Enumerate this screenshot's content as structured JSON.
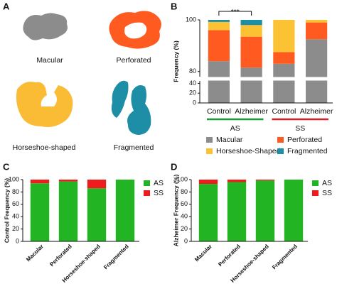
{
  "shapes_panel": {
    "label": "A",
    "shapes": [
      {
        "name": "Macular",
        "color": "#8c8c8c"
      },
      {
        "name": "Perforated",
        "color": "#ff5a1f"
      },
      {
        "name": "Horseshoe-shaped",
        "color": "#fbbc35"
      },
      {
        "name": "Fragmented",
        "color": "#1d8ea6"
      }
    ]
  },
  "chart_data": [
    {
      "type": "bar",
      "stacked": true,
      "label": "B",
      "ylabel": "Frequency (%)",
      "groups": [
        {
          "name": "AS",
          "color": "#1a9a3c",
          "categories": [
            "Control",
            "Alzheimer"
          ]
        },
        {
          "name": "SS",
          "color": "#d9202a",
          "categories": [
            "Control",
            "Alzheimer"
          ]
        }
      ],
      "series": [
        {
          "name": "Macular",
          "color": "#8c8c8c",
          "values": [
            84,
            81.5,
            83,
            92.5
          ]
        },
        {
          "name": "Perforated",
          "color": "#ff5a1f",
          "values": [
            12,
            12,
            4.5,
            6.5
          ]
        },
        {
          "name": "Horseshoe-Shaped",
          "color": "#fbc233",
          "values": [
            3.2,
            4.5,
            12.5,
            1
          ]
        },
        {
          "name": "Fragmented",
          "color": "#1d8ea6",
          "values": [
            0.8,
            2,
            0,
            0
          ]
        }
      ],
      "ylim": [
        0,
        100
      ],
      "y_break": [
        45,
        78
      ],
      "yticks": [
        0,
        20,
        40,
        80,
        100
      ],
      "annotation": "***",
      "legend": "bottom"
    },
    {
      "type": "bar",
      "stacked": true,
      "label": "C",
      "ylabel": "Control Frequency (%)",
      "categories": [
        "Macular",
        "Perforated",
        "Horseshoe-shaped",
        "Fragmented"
      ],
      "series": [
        {
          "name": "AS",
          "color": "#22b422",
          "values": [
            94,
            97,
            86,
            100
          ]
        },
        {
          "name": "SS",
          "color": "#ee1c1c",
          "values": [
            6,
            3,
            14,
            0
          ]
        }
      ],
      "ylim": [
        0,
        100
      ],
      "yticks": [
        0,
        20,
        40,
        60,
        80,
        100
      ],
      "legend": "right"
    },
    {
      "type": "bar",
      "stacked": true,
      "label": "D",
      "ylabel": "Alzheimer Frequency (%)",
      "categories": [
        "Macular",
        "Perforated",
        "Horseshoe-shaped",
        "Fragmented"
      ],
      "series": [
        {
          "name": "AS",
          "color": "#22b422",
          "values": [
            93,
            96,
            98.5,
            100
          ]
        },
        {
          "name": "SS",
          "color": "#ee1c1c",
          "values": [
            7,
            4,
            1.5,
            0
          ]
        }
      ],
      "ylim": [
        0,
        100
      ],
      "yticks": [
        0,
        20,
        40,
        60,
        80,
        100
      ],
      "legend": "right"
    }
  ]
}
